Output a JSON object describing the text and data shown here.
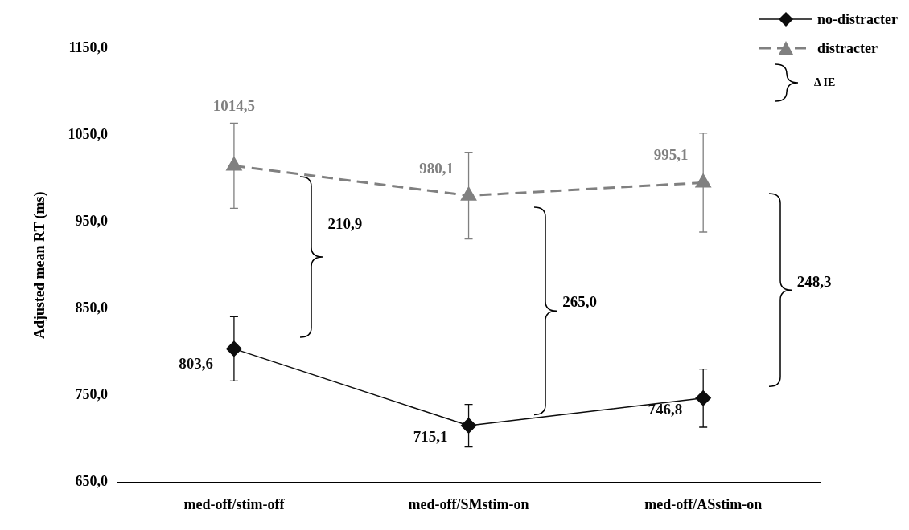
{
  "chart_data": {
    "type": "line",
    "ylabel": "Adjusted mean RT (ms)",
    "categories": [
      "med-off/stim-off",
      "med-off/SMstim-on",
      "med-off/ASstim-on"
    ],
    "series": [
      {
        "name": "no-distracter",
        "color": "#0d0d0d",
        "marker": "diamond",
        "line_style": "solid",
        "values": [
          803.6,
          715.1,
          746.8
        ],
        "errors": [
          37,
          24.5,
          33.5
        ],
        "value_labels": [
          "803,6",
          "715,1",
          "746,8"
        ]
      },
      {
        "name": "distracter",
        "color": "#808080",
        "marker": "triangle",
        "line_style": "dashed",
        "values": [
          1014.5,
          980.1,
          995.1
        ],
        "errors": [
          49,
          50,
          57
        ],
        "value_labels": [
          "1014,5",
          "980,1",
          "995,1"
        ]
      }
    ],
    "ylim": [
      650,
      1150
    ],
    "yticks": [
      {
        "value": 650,
        "label": "650,0"
      },
      {
        "value": 750,
        "label": "750,0"
      },
      {
        "value": 850,
        "label": "850,0"
      },
      {
        "value": 950,
        "label": "950,0"
      },
      {
        "value": 1050,
        "label": "1050,0"
      },
      {
        "value": 1150,
        "label": "1150,0"
      }
    ],
    "grid": false,
    "legend": "top right",
    "annotations": [
      "Δ IE",
      "210,9",
      "265,0",
      "248,3"
    ]
  }
}
